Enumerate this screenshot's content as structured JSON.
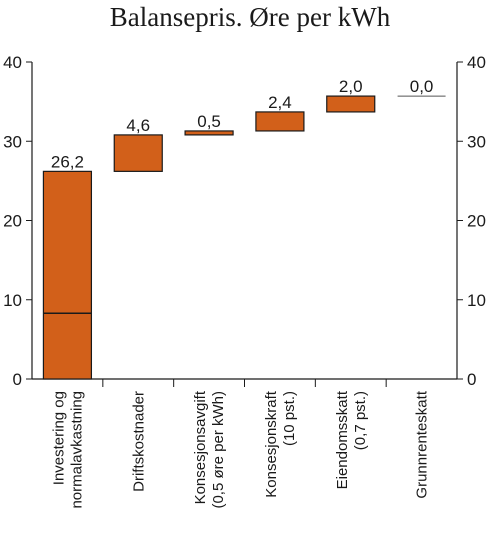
{
  "chart_data": {
    "type": "bar",
    "subtype": "waterfall",
    "title": "Balansepris. Øre per kWh",
    "xlabel": "",
    "ylabel": "",
    "ylim": [
      0,
      40
    ],
    "yticks": [
      0,
      10,
      20,
      30,
      40
    ],
    "grid": false,
    "legend": "none",
    "bar_color": "#d2601a",
    "categories": [
      [
        "Investering og",
        "normalavkastning"
      ],
      [
        "Driftskostnader"
      ],
      [
        "Konsesjonsavgift",
        "(0,5 øre per kWh)"
      ],
      [
        "Konsesjonskraft",
        "(10 pst.)"
      ],
      [
        "Eiendomsskatt",
        "(0,7 pst.)"
      ],
      [
        "Grunnrenteskatt"
      ]
    ],
    "values": [
      26.2,
      4.6,
      0.5,
      2.4,
      2.0,
      0.0
    ],
    "value_labels": [
      "26,2",
      "4,6",
      "0,5",
      "2,4",
      "2,0",
      "0,0"
    ],
    "bases": [
      0,
      26.2,
      30.8,
      31.3,
      33.7,
      35.7
    ],
    "inner_line_value": 8.3
  }
}
